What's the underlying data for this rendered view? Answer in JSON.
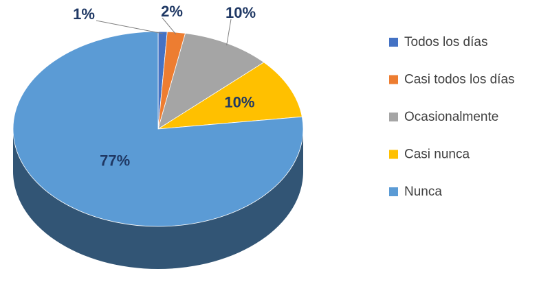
{
  "chart_data": {
    "type": "pie",
    "categories": [
      "Todos los días",
      "Casi todos los días",
      "Ocasionalmente",
      "Casi nunca",
      "Nunca"
    ],
    "values": [
      1,
      2,
      10,
      10,
      77
    ],
    "value_labels": [
      "1%",
      "2%",
      "10%",
      "10%",
      "77%"
    ],
    "colors": [
      "#4472c4",
      "#ed7d31",
      "#a5a5a5",
      "#ffc000",
      "#5b9bd5"
    ],
    "legend": "right"
  }
}
